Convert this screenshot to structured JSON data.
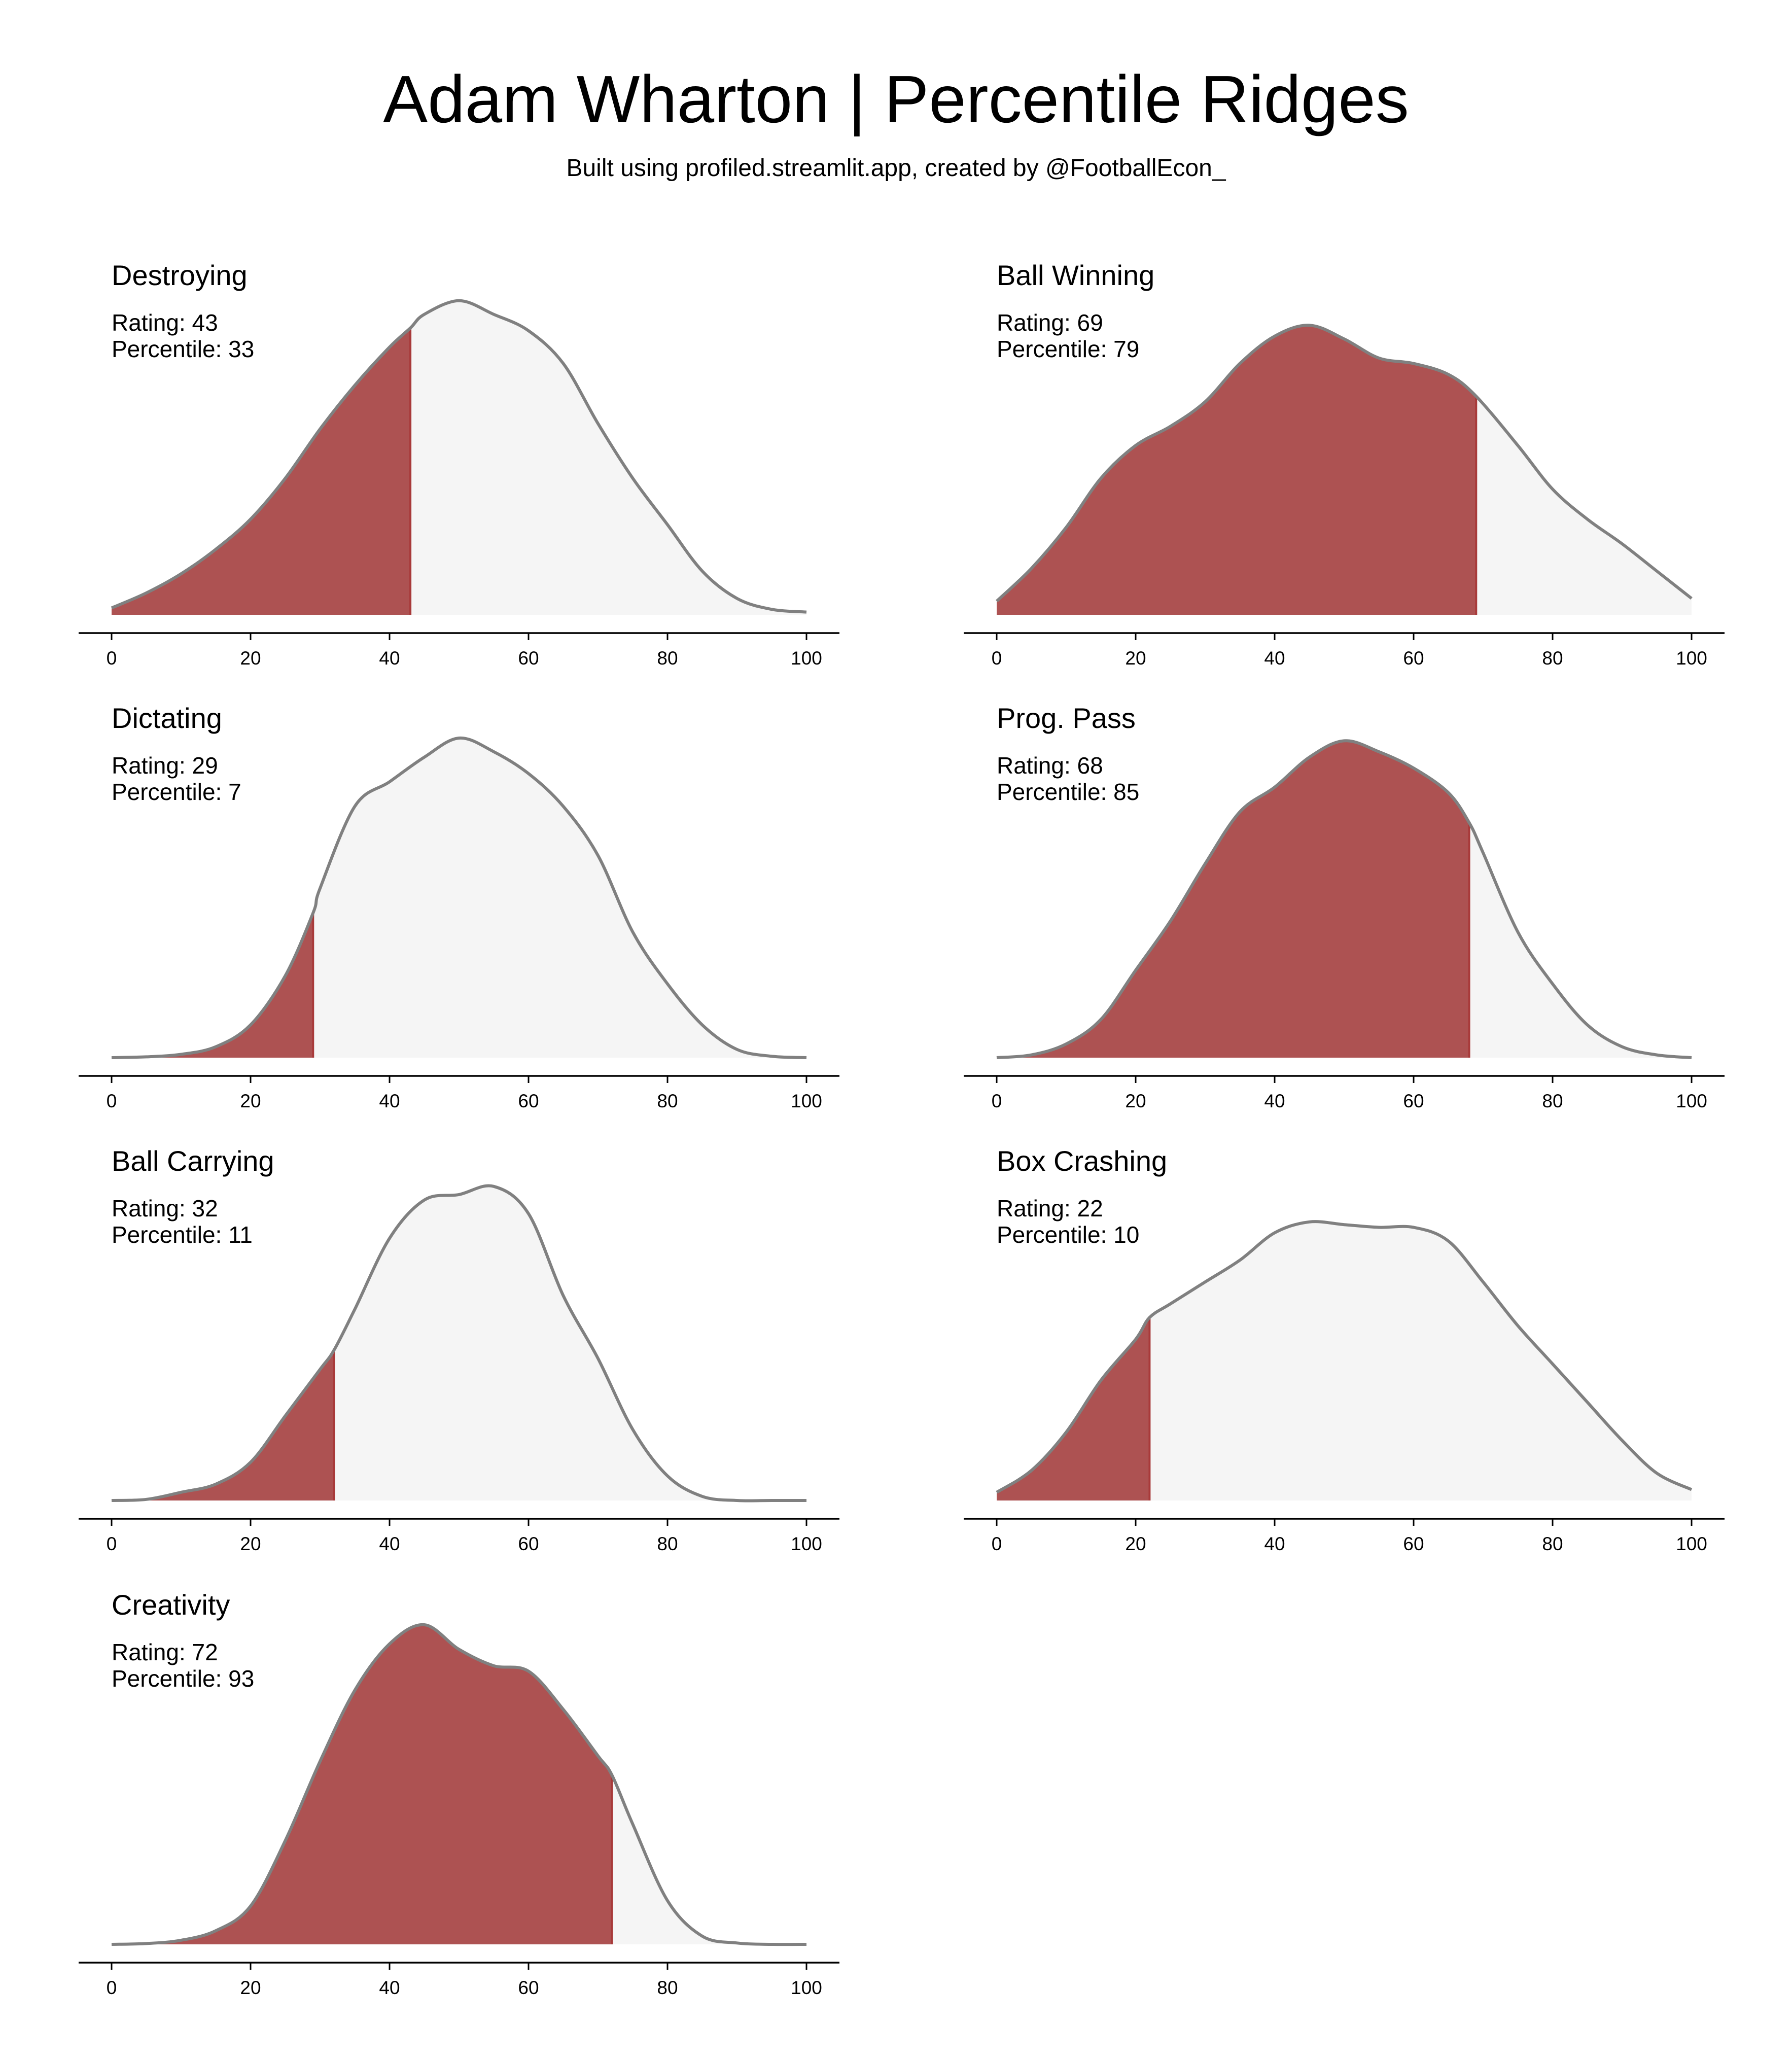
{
  "title": "Adam Wharton | Percentile Ridges",
  "subtitle": "Built using profiled.streamlit.app, created by @FootballEcon_",
  "colors": {
    "filled": "#ad5252",
    "filled_edge": "#a83a3a",
    "unfilled": "#f5f5f5",
    "curve": "#808080",
    "axis": "#000000"
  },
  "chart_data": {
    "type": "area",
    "grid": false,
    "layout": "4 rows x 2 columns",
    "xlim": [
      0,
      100
    ],
    "xticks": [
      0,
      20,
      40,
      60,
      80,
      100
    ],
    "rating_prefix": "Rating: ",
    "percentile_prefix": "Percentile: ",
    "panels": [
      {
        "label": "Destroying",
        "rating": 43,
        "percentile": 33,
        "x": [
          0,
          5,
          10,
          15,
          20,
          25,
          30,
          35,
          40,
          43,
          45,
          50,
          55,
          60,
          65,
          70,
          75,
          80,
          85,
          90,
          95,
          100
        ],
        "density": [
          0.025,
          0.08,
          0.15,
          0.24,
          0.35,
          0.5,
          0.68,
          0.84,
          0.98,
          1.05,
          1.1,
          1.15,
          1.1,
          1.04,
          0.92,
          0.7,
          0.5,
          0.33,
          0.16,
          0.06,
          0.02,
          0.01
        ]
      },
      {
        "label": "Ball Winning",
        "rating": 69,
        "percentile": 79,
        "x": [
          0,
          5,
          10,
          15,
          20,
          25,
          30,
          35,
          40,
          45,
          50,
          55,
          60,
          65,
          69,
          75,
          80,
          85,
          90,
          95,
          100
        ],
        "density": [
          0.05,
          0.17,
          0.32,
          0.5,
          0.62,
          0.69,
          0.78,
          0.92,
          1.02,
          1.06,
          1.01,
          0.94,
          0.92,
          0.88,
          0.8,
          0.62,
          0.46,
          0.35,
          0.26,
          0.16,
          0.06
        ]
      },
      {
        "label": "Dictating",
        "rating": 29,
        "percentile": 7,
        "x": [
          0,
          5,
          10,
          15,
          20,
          25,
          29,
          30,
          35,
          40,
          45,
          50,
          55,
          60,
          65,
          70,
          75,
          80,
          85,
          90,
          95,
          100
        ],
        "density": [
          0.0,
          0.003,
          0.012,
          0.04,
          0.12,
          0.3,
          0.53,
          0.62,
          0.92,
          1.01,
          1.1,
          1.17,
          1.12,
          1.04,
          0.92,
          0.74,
          0.46,
          0.27,
          0.12,
          0.03,
          0.005,
          0.0
        ]
      },
      {
        "label": "Prog. Pass",
        "rating": 68,
        "percentile": 85,
        "x": [
          0,
          5,
          10,
          15,
          20,
          25,
          30,
          35,
          40,
          45,
          50,
          55,
          60,
          65,
          68,
          70,
          75,
          80,
          85,
          90,
          95,
          100
        ],
        "density": [
          0.0,
          0.01,
          0.05,
          0.14,
          0.32,
          0.5,
          0.71,
          0.9,
          0.99,
          1.1,
          1.16,
          1.12,
          1.06,
          0.97,
          0.86,
          0.75,
          0.46,
          0.27,
          0.12,
          0.04,
          0.01,
          0.0
        ]
      },
      {
        "label": "Ball Carrying",
        "rating": 32,
        "percentile": 11,
        "x": [
          0,
          5,
          10,
          15,
          20,
          25,
          30,
          32,
          35,
          40,
          45,
          50,
          55,
          60,
          65,
          70,
          75,
          80,
          85,
          90,
          95,
          100
        ],
        "density": [
          0.0,
          0.004,
          0.03,
          0.06,
          0.14,
          0.31,
          0.48,
          0.55,
          0.7,
          0.96,
          1.1,
          1.12,
          1.15,
          1.05,
          0.75,
          0.52,
          0.26,
          0.09,
          0.015,
          0.0,
          0.0,
          0.0
        ]
      },
      {
        "label": "Box Crashing",
        "rating": 22,
        "percentile": 10,
        "x": [
          0,
          5,
          10,
          15,
          20,
          22,
          25,
          30,
          35,
          40,
          45,
          50,
          55,
          60,
          65,
          70,
          75,
          80,
          85,
          90,
          95,
          100
        ],
        "density": [
          0.03,
          0.11,
          0.25,
          0.44,
          0.59,
          0.67,
          0.72,
          0.8,
          0.88,
          0.98,
          1.02,
          1.01,
          1.0,
          1.0,
          0.95,
          0.8,
          0.64,
          0.5,
          0.36,
          0.22,
          0.1,
          0.04
        ]
      },
      {
        "label": "Creativity",
        "rating": 72,
        "percentile": 93,
        "x": [
          0,
          5,
          10,
          15,
          20,
          25,
          30,
          35,
          40,
          45,
          50,
          55,
          60,
          65,
          70,
          72,
          75,
          80,
          85,
          90,
          95,
          100
        ],
        "density": [
          0.0,
          0.003,
          0.015,
          0.05,
          0.14,
          0.38,
          0.67,
          0.93,
          1.1,
          1.17,
          1.08,
          1.02,
          1.0,
          0.86,
          0.69,
          0.62,
          0.44,
          0.16,
          0.03,
          0.005,
          0.0,
          0.0
        ]
      }
    ]
  }
}
